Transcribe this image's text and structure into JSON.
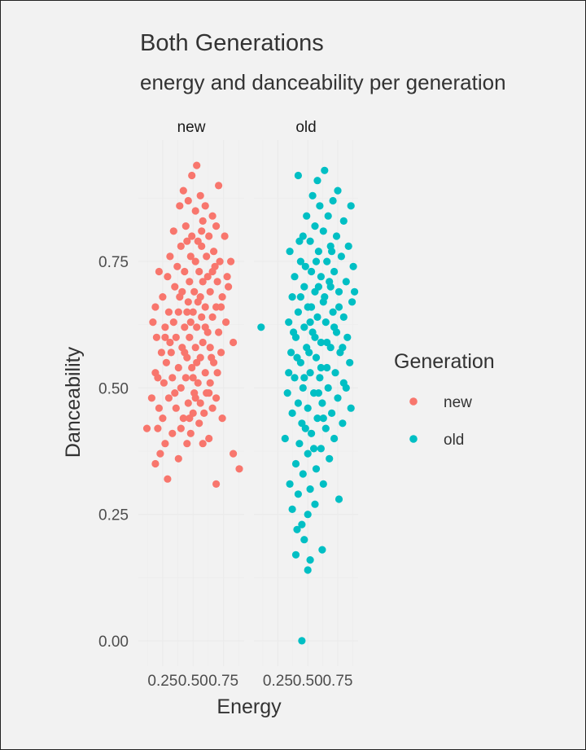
{
  "chart_data": {
    "type": "scatter",
    "title": "Both Generations",
    "subtitle": "energy and danceability per generation",
    "xlabel": "Energy",
    "ylabel": "Danceability",
    "facet_labels": [
      "new",
      "old"
    ],
    "x_ticks": [
      "0.25",
      "0.50",
      "0.75"
    ],
    "y_ticks": [
      "0.00",
      "0.25",
      "0.50",
      "0.75"
    ],
    "xlim": [
      0.05,
      0.92
    ],
    "ylim": [
      -0.05,
      0.99
    ],
    "grid": true,
    "legend": {
      "title": "Generation",
      "position": "right",
      "entries": [
        {
          "label": "new",
          "color": "#F8766D"
        },
        {
          "label": "old",
          "color": "#00BFC4"
        }
      ]
    },
    "colors": {
      "new": "#F8766D",
      "old": "#00BFC4",
      "background": "#f2f2f2"
    },
    "series": [
      {
        "name": "new",
        "facet": "new",
        "color": "#F8766D",
        "points": [
          [
            0.53,
            0.94
          ],
          [
            0.49,
            0.92
          ],
          [
            0.42,
            0.89
          ],
          [
            0.56,
            0.88
          ],
          [
            0.71,
            0.9
          ],
          [
            0.46,
            0.87
          ],
          [
            0.39,
            0.86
          ],
          [
            0.6,
            0.86
          ],
          [
            0.66,
            0.84
          ],
          [
            0.52,
            0.85
          ],
          [
            0.44,
            0.82
          ],
          [
            0.58,
            0.83
          ],
          [
            0.69,
            0.82
          ],
          [
            0.34,
            0.81
          ],
          [
            0.49,
            0.8
          ],
          [
            0.54,
            0.79
          ],
          [
            0.63,
            0.8
          ],
          [
            0.76,
            0.8
          ],
          [
            0.4,
            0.78
          ],
          [
            0.45,
            0.79
          ],
          [
            0.57,
            0.78
          ],
          [
            0.67,
            0.77
          ],
          [
            0.81,
            0.75
          ],
          [
            0.31,
            0.76
          ],
          [
            0.48,
            0.76
          ],
          [
            0.52,
            0.75
          ],
          [
            0.61,
            0.76
          ],
          [
            0.72,
            0.75
          ],
          [
            0.37,
            0.74
          ],
          [
            0.43,
            0.73
          ],
          [
            0.55,
            0.73
          ],
          [
            0.66,
            0.73
          ],
          [
            0.22,
            0.73
          ],
          [
            0.29,
            0.72
          ],
          [
            0.47,
            0.71
          ],
          [
            0.58,
            0.71
          ],
          [
            0.7,
            0.71
          ],
          [
            0.79,
            0.7
          ],
          [
            0.35,
            0.7
          ],
          [
            0.41,
            0.69
          ],
          [
            0.51,
            0.69
          ],
          [
            0.64,
            0.69
          ],
          [
            0.74,
            0.68
          ],
          [
            0.25,
            0.68
          ],
          [
            0.46,
            0.67
          ],
          [
            0.54,
            0.67
          ],
          [
            0.6,
            0.66
          ],
          [
            0.69,
            0.66
          ],
          [
            0.19,
            0.66
          ],
          [
            0.3,
            0.65
          ],
          [
            0.38,
            0.65
          ],
          [
            0.5,
            0.65
          ],
          [
            0.57,
            0.64
          ],
          [
            0.66,
            0.64
          ],
          [
            0.77,
            0.63
          ],
          [
            0.17,
            0.63
          ],
          [
            0.27,
            0.62
          ],
          [
            0.43,
            0.62
          ],
          [
            0.53,
            0.62
          ],
          [
            0.62,
            0.61
          ],
          [
            0.71,
            0.61
          ],
          [
            0.36,
            0.6
          ],
          [
            0.47,
            0.6
          ],
          [
            0.58,
            0.59
          ],
          [
            0.2,
            0.6
          ],
          [
            0.31,
            0.59
          ],
          [
            0.41,
            0.58
          ],
          [
            0.52,
            0.58
          ],
          [
            0.64,
            0.58
          ],
          [
            0.73,
            0.57
          ],
          [
            0.24,
            0.57
          ],
          [
            0.45,
            0.56
          ],
          [
            0.56,
            0.56
          ],
          [
            0.67,
            0.55
          ],
          [
            0.83,
            0.59
          ],
          [
            0.28,
            0.55
          ],
          [
            0.38,
            0.54
          ],
          [
            0.49,
            0.54
          ],
          [
            0.6,
            0.53
          ],
          [
            0.7,
            0.53
          ],
          [
            0.19,
            0.53
          ],
          [
            0.33,
            0.52
          ],
          [
            0.44,
            0.52
          ],
          [
            0.54,
            0.51
          ],
          [
            0.64,
            0.51
          ],
          [
            0.26,
            0.51
          ],
          [
            0.4,
            0.5
          ],
          [
            0.51,
            0.49
          ],
          [
            0.61,
            0.49
          ],
          [
            0.69,
            0.48
          ],
          [
            0.16,
            0.48
          ],
          [
            0.3,
            0.48
          ],
          [
            0.46,
            0.47
          ],
          [
            0.56,
            0.47
          ],
          [
            0.66,
            0.46
          ],
          [
            0.22,
            0.46
          ],
          [
            0.36,
            0.46
          ],
          [
            0.5,
            0.45
          ],
          [
            0.59,
            0.45
          ],
          [
            0.25,
            0.44
          ],
          [
            0.42,
            0.44
          ],
          [
            0.55,
            0.43
          ],
          [
            0.74,
            0.44
          ],
          [
            0.12,
            0.42
          ],
          [
            0.21,
            0.42
          ],
          [
            0.33,
            0.41
          ],
          [
            0.48,
            0.41
          ],
          [
            0.63,
            0.4
          ],
          [
            0.27,
            0.39
          ],
          [
            0.45,
            0.39
          ],
          [
            0.58,
            0.39
          ],
          [
            0.83,
            0.37
          ],
          [
            0.23,
            0.37
          ],
          [
            0.38,
            0.36
          ],
          [
            0.19,
            0.35
          ],
          [
            0.88,
            0.34
          ],
          [
            0.29,
            0.32
          ],
          [
            0.69,
            0.31
          ],
          [
            0.5,
            0.52
          ],
          [
            0.43,
            0.57
          ],
          [
            0.34,
            0.63
          ],
          [
            0.62,
            0.72
          ],
          [
            0.56,
            0.68
          ],
          [
            0.48,
            0.63
          ],
          [
            0.39,
            0.68
          ],
          [
            0.73,
            0.66
          ],
          [
            0.27,
            0.6
          ],
          [
            0.65,
            0.56
          ],
          [
            0.53,
            0.55
          ],
          [
            0.35,
            0.49
          ],
          [
            0.6,
            0.62
          ],
          [
            0.45,
            0.65
          ],
          [
            0.68,
            0.74
          ],
          [
            0.32,
            0.57
          ],
          [
            0.52,
            0.48
          ],
          [
            0.4,
            0.42
          ],
          [
            0.57,
            0.81
          ],
          [
            0.78,
            0.72
          ],
          [
            0.21,
            0.52
          ],
          [
            0.63,
            0.49
          ],
          [
            0.47,
            0.44
          ]
        ]
      },
      {
        "name": "old",
        "facet": "old",
        "color": "#00BFC4",
        "points": [
          [
            0.64,
            0.93
          ],
          [
            0.42,
            0.92
          ],
          [
            0.58,
            0.91
          ],
          [
            0.75,
            0.89
          ],
          [
            0.54,
            0.88
          ],
          [
            0.71,
            0.87
          ],
          [
            0.86,
            0.86
          ],
          [
            0.6,
            0.86
          ],
          [
            0.49,
            0.84
          ],
          [
            0.67,
            0.84
          ],
          [
            0.8,
            0.83
          ],
          [
            0.56,
            0.82
          ],
          [
            0.63,
            0.81
          ],
          [
            0.46,
            0.8
          ],
          [
            0.74,
            0.8
          ],
          [
            0.52,
            0.79
          ],
          [
            0.69,
            0.78
          ],
          [
            0.84,
            0.78
          ],
          [
            0.35,
            0.77
          ],
          [
            0.59,
            0.77
          ],
          [
            0.78,
            0.76
          ],
          [
            0.44,
            0.75
          ],
          [
            0.66,
            0.75
          ],
          [
            0.88,
            0.74
          ],
          [
            0.53,
            0.73
          ],
          [
            0.72,
            0.73
          ],
          [
            0.39,
            0.72
          ],
          [
            0.61,
            0.72
          ],
          [
            0.82,
            0.71
          ],
          [
            0.47,
            0.7
          ],
          [
            0.69,
            0.7
          ],
          [
            0.56,
            0.69
          ],
          [
            0.76,
            0.69
          ],
          [
            0.37,
            0.68
          ],
          [
            0.87,
            0.67
          ],
          [
            0.63,
            0.67
          ],
          [
            0.5,
            0.66
          ],
          [
            0.42,
            0.65
          ],
          [
            0.71,
            0.65
          ],
          [
            0.58,
            0.64
          ],
          [
            0.8,
            0.64
          ],
          [
            0.34,
            0.63
          ],
          [
            0.65,
            0.63
          ],
          [
            0.47,
            0.62
          ],
          [
            0.11,
            0.62
          ],
          [
            0.74,
            0.61
          ],
          [
            0.54,
            0.61
          ],
          [
            0.83,
            0.6
          ],
          [
            0.4,
            0.6
          ],
          [
            0.61,
            0.59
          ],
          [
            0.69,
            0.58
          ],
          [
            0.49,
            0.58
          ],
          [
            0.77,
            0.57
          ],
          [
            0.36,
            0.57
          ],
          [
            0.57,
            0.56
          ],
          [
            0.85,
            0.55
          ],
          [
            0.44,
            0.55
          ],
          [
            0.66,
            0.54
          ],
          [
            0.52,
            0.53
          ],
          [
            0.73,
            0.53
          ],
          [
            0.39,
            0.52
          ],
          [
            0.6,
            0.52
          ],
          [
            0.8,
            0.51
          ],
          [
            0.46,
            0.5
          ],
          [
            0.67,
            0.5
          ],
          [
            0.55,
            0.49
          ],
          [
            0.33,
            0.49
          ],
          [
            0.75,
            0.48
          ],
          [
            0.42,
            0.47
          ],
          [
            0.62,
            0.47
          ],
          [
            0.86,
            0.46
          ],
          [
            0.5,
            0.46
          ],
          [
            0.7,
            0.45
          ],
          [
            0.37,
            0.45
          ],
          [
            0.58,
            0.44
          ],
          [
            0.79,
            0.43
          ],
          [
            0.45,
            0.43
          ],
          [
            0.65,
            0.42
          ],
          [
            0.53,
            0.41
          ],
          [
            0.31,
            0.4
          ],
          [
            0.72,
            0.4
          ],
          [
            0.43,
            0.39
          ],
          [
            0.61,
            0.38
          ],
          [
            0.5,
            0.37
          ],
          [
            0.68,
            0.36
          ],
          [
            0.4,
            0.35
          ],
          [
            0.57,
            0.34
          ],
          [
            0.46,
            0.33
          ],
          [
            0.35,
            0.31
          ],
          [
            0.63,
            0.31
          ],
          [
            0.52,
            0.3
          ],
          [
            0.42,
            0.29
          ],
          [
            0.76,
            0.28
          ],
          [
            0.56,
            0.27
          ],
          [
            0.37,
            0.26
          ],
          [
            0.5,
            0.25
          ],
          [
            0.45,
            0.23
          ],
          [
            0.41,
            0.22
          ],
          [
            0.47,
            0.2
          ],
          [
            0.4,
            0.17
          ],
          [
            0.62,
            0.18
          ],
          [
            0.52,
            0.16
          ],
          [
            0.5,
            0.14
          ],
          [
            0.45,
            0.0
          ],
          [
            0.59,
            0.7
          ],
          [
            0.48,
            0.74
          ],
          [
            0.66,
            0.59
          ],
          [
            0.53,
            0.66
          ],
          [
            0.41,
            0.56
          ],
          [
            0.72,
            0.62
          ],
          [
            0.61,
            0.54
          ],
          [
            0.47,
            0.52
          ],
          [
            0.79,
            0.58
          ],
          [
            0.56,
            0.6
          ],
          [
            0.64,
            0.68
          ],
          [
            0.38,
            0.61
          ],
          [
            0.51,
            0.57
          ],
          [
            0.7,
            0.77
          ],
          [
            0.59,
            0.49
          ],
          [
            0.44,
            0.68
          ],
          [
            0.82,
            0.5
          ],
          [
            0.34,
            0.53
          ],
          [
            0.63,
            0.44
          ],
          [
            0.55,
            0.38
          ],
          [
            0.48,
            0.42
          ],
          [
            0.57,
            0.75
          ],
          [
            0.68,
            0.71
          ],
          [
            0.43,
            0.79
          ],
          [
            0.76,
            0.66
          ],
          [
            0.52,
            0.63
          ],
          [
            0.89,
            0.69
          ]
        ]
      }
    ]
  }
}
